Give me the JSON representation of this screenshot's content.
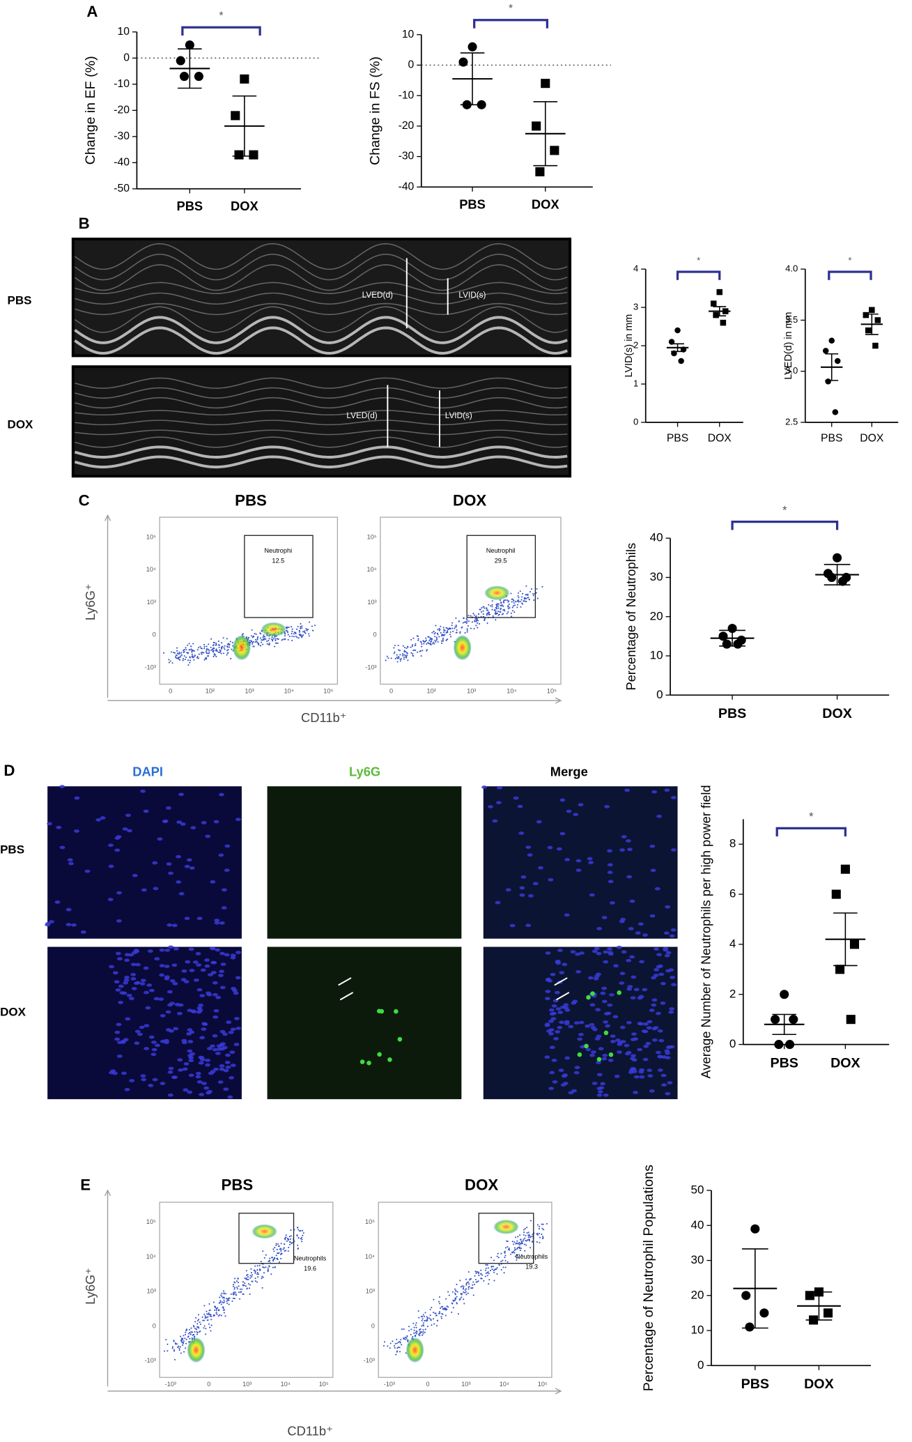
{
  "panel_labels": [
    "A",
    "B",
    "C",
    "D",
    "E"
  ],
  "echo": {
    "rows": [
      "PBS",
      "DOX"
    ],
    "annotations": [
      "LVED(d)",
      "LVID(s)"
    ]
  },
  "flow": [
    {
      "headers": [
        "PBS",
        "DOX"
      ],
      "gates": [
        {
          "name": "Neutrophi",
          "value": "12.5"
        },
        {
          "name": "Neutrophil",
          "value": "29.5"
        }
      ],
      "y_title": "Ly6G⁺",
      "x_title": "CD11b⁺",
      "yticks": [
        "10⁵",
        "10⁴",
        "10³",
        "0",
        "-10³"
      ],
      "xticks": [
        "0",
        "10²",
        "10³",
        "10⁴",
        "10⁵"
      ]
    },
    {
      "headers": [
        "PBS",
        "DOX"
      ],
      "gates": [
        {
          "name": "Neutrophils",
          "value": "19.6"
        },
        {
          "name": "Neutrophils",
          "value": "19.3"
        }
      ],
      "y_title": "Ly6G⁺",
      "x_title": "CD11b⁺",
      "yticks": [
        "10⁵",
        "10⁴",
        "10³",
        "0",
        "-10³"
      ],
      "xticks": [
        "-10³",
        "0",
        "10³",
        "10⁴",
        "10⁵"
      ]
    }
  ],
  "microscopy": {
    "columns": [
      "DAPI",
      "Ly6G",
      "Merge"
    ],
    "rows": [
      "PBS",
      "DOX"
    ]
  },
  "chart_data": [
    {
      "type": "dotplot",
      "y_label": "Change in EF (%)",
      "categories": [
        "PBS",
        "DOX"
      ],
      "markers": [
        "circle",
        "square"
      ],
      "values": [
        [
          5,
          -1,
          -7,
          -7
        ],
        [
          -8,
          -22,
          -37,
          -37
        ]
      ],
      "means": [
        -4,
        -26
      ],
      "errors": [
        7.5,
        11.5
      ],
      "ylim": [
        -50,
        10
      ],
      "yticks": [
        10,
        0,
        -10,
        -20,
        -30,
        -40,
        -50
      ],
      "reference_line": 0,
      "significance": "*"
    },
    {
      "type": "dotplot",
      "y_label": "Change in FS (%)",
      "categories": [
        "PBS",
        "DOX"
      ],
      "markers": [
        "circle",
        "square"
      ],
      "values": [
        [
          6,
          1,
          -13,
          -13
        ],
        [
          -6,
          -20,
          -28,
          -35
        ]
      ],
      "means": [
        -4.5,
        -22.5
      ],
      "errors": [
        8.5,
        10.5
      ],
      "ylim": [
        -40,
        10
      ],
      "yticks": [
        10,
        0,
        -10,
        -20,
        -30,
        -40
      ],
      "reference_line": 0,
      "significance": "*"
    },
    {
      "type": "dotplot",
      "y_label": "LVID(s) in mm",
      "categories": [
        "PBS",
        "DOX"
      ],
      "markers": [
        "circle",
        "square"
      ],
      "values": [
        [
          2.4,
          2.1,
          1.9,
          1.8,
          1.6
        ],
        [
          3.4,
          3.1,
          2.9,
          2.8,
          2.6
        ]
      ],
      "means": [
        1.95,
        2.9
      ],
      "errors": [
        0.1,
        0.12
      ],
      "ylim": [
        0,
        4
      ],
      "yticks": [
        0,
        1,
        2,
        3,
        4
      ],
      "significance": "*"
    },
    {
      "type": "dotplot",
      "y_label": "LVED(d) in mm",
      "categories": [
        "PBS",
        "DOX"
      ],
      "markers": [
        "circle",
        "square"
      ],
      "values": [
        [
          3.3,
          3.2,
          3.1,
          2.9,
          2.6
        ],
        [
          3.6,
          3.55,
          3.5,
          3.4,
          3.25
        ]
      ],
      "means": [
        3.04,
        3.46
      ],
      "errors": [
        0.13,
        0.1
      ],
      "ylim": [
        2.5,
        4
      ],
      "yticks": [
        2.5,
        {
          "value": 3,
          "label": "3.0"
        },
        3.5,
        {
          "value": 4,
          "label": "4.0"
        }
      ],
      "significance": "*"
    },
    {
      "type": "dotplot",
      "y_label": "Percentage of Neutrophils",
      "categories": [
        "PBS",
        "DOX"
      ],
      "markers": [
        "circle",
        "circle"
      ],
      "values": [
        [
          17,
          15,
          14,
          13,
          13
        ],
        [
          35,
          31,
          30,
          30,
          29
        ]
      ],
      "means": [
        14.5,
        30.7
      ],
      "errors": [
        2,
        2.6
      ],
      "ylim": [
        0,
        40
      ],
      "yticks": [
        0,
        10,
        20,
        30,
        40
      ],
      "significance": "*"
    },
    {
      "type": "dotplot",
      "y_label": "Average Number of Neutrophils per high power field",
      "categories": [
        "PBS",
        "DOX"
      ],
      "markers": [
        "circle",
        "square"
      ],
      "values": [
        [
          2,
          1,
          1,
          0,
          0
        ],
        [
          7,
          6,
          4,
          3,
          1
        ]
      ],
      "means": [
        0.8,
        4.2
      ],
      "errors": [
        0.4,
        1.05
      ],
      "ylim": [
        0,
        9
      ],
      "yticks": [
        0,
        2,
        4,
        6,
        8
      ],
      "significance": "*"
    },
    {
      "type": "dotplot",
      "y_label": "Percentage of Neutrophil Populations",
      "categories": [
        "PBS",
        "DOX"
      ],
      "markers": [
        "circle",
        "square"
      ],
      "values": [
        [
          39,
          20,
          15,
          11
        ],
        [
          21,
          20,
          15,
          13
        ]
      ],
      "means": [
        22,
        17
      ],
      "errors": [
        11.3,
        4
      ],
      "ylim": [
        0,
        50
      ],
      "yticks": [
        0,
        10,
        20,
        30,
        40,
        50
      ]
    }
  ]
}
